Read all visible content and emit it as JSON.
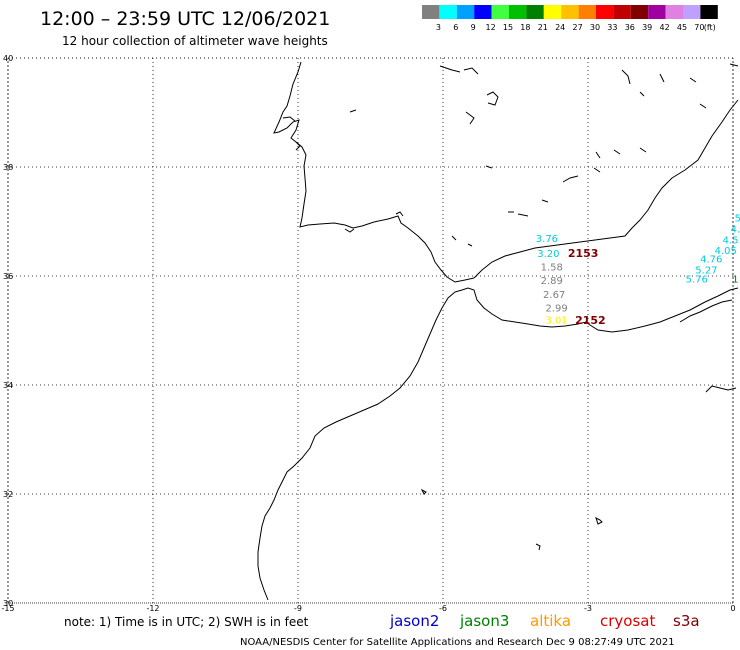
{
  "header": {
    "title": "12:00 – 23:59 UTC 12/06/2021",
    "subtitle": "12 hour collection of altimeter wave heights"
  },
  "legend": {
    "unit": "(ft)",
    "bins": [
      {
        "label": "3",
        "color": "#808080"
      },
      {
        "label": "6",
        "color": "#00ffff"
      },
      {
        "label": "9",
        "color": "#00a0ff"
      },
      {
        "label": "12",
        "color": "#0000ff"
      },
      {
        "label": "15",
        "color": "#40ff40"
      },
      {
        "label": "18",
        "color": "#00c000"
      },
      {
        "label": "21",
        "color": "#008000"
      },
      {
        "label": "24",
        "color": "#ffff00"
      },
      {
        "label": "27",
        "color": "#ffc000"
      },
      {
        "label": "30",
        "color": "#ff8000"
      },
      {
        "label": "33",
        "color": "#ff0000"
      },
      {
        "label": "36",
        "color": "#c00000"
      },
      {
        "label": "39",
        "color": "#800000"
      },
      {
        "label": "42",
        "color": "#a000a0"
      },
      {
        "label": "45",
        "color": "#e080e0"
      },
      {
        "label": "70",
        "color": "#c0a0ff"
      },
      {
        "label": "",
        "color": "#000000"
      }
    ]
  },
  "map": {
    "lon_range": [
      -15,
      0
    ],
    "lat_range": [
      30,
      40
    ],
    "lon_ticks": [
      "-15",
      "-12",
      "-9",
      "-6",
      "-3",
      "0"
    ],
    "lat_ticks": [
      "40",
      "38",
      "36",
      "34",
      "32",
      "30"
    ],
    "observations": [
      {
        "text": "3.76",
        "color": "#00ccdd",
        "lon": -3.85,
        "lat": 36.62
      },
      {
        "text": "3.20",
        "color": "#00ccdd",
        "lon": -3.82,
        "lat": 36.35
      },
      {
        "text": "1.58",
        "color": "#808080",
        "lon": -3.75,
        "lat": 36.1
      },
      {
        "text": "2.89",
        "color": "#808080",
        "lon": -3.75,
        "lat": 35.85
      },
      {
        "text": "2.67",
        "color": "#808080",
        "lon": -3.7,
        "lat": 35.6
      },
      {
        "text": "2.99",
        "color": "#808080",
        "lon": -3.65,
        "lat": 35.35
      },
      {
        "text": "3.01",
        "color": "#ffee00",
        "lon": -3.65,
        "lat": 35.13
      },
      {
        "text": "5",
        "color": "#00ccdd",
        "lon": 0.1,
        "lat": 37.0
      },
      {
        "text": "4.",
        "color": "#00ccdd",
        "lon": 0.05,
        "lat": 36.8
      },
      {
        "text": "4.5",
        "color": "#00ccdd",
        "lon": -0.05,
        "lat": 36.6
      },
      {
        "text": "4.05",
        "color": "#00ccdd",
        "lon": -0.15,
        "lat": 36.4
      },
      {
        "text": "4.76",
        "color": "#00ccdd",
        "lon": -0.45,
        "lat": 36.25
      },
      {
        "text": "5.27",
        "color": "#00ccdd",
        "lon": -0.55,
        "lat": 36.05
      },
      {
        "text": "5.76",
        "color": "#00ccdd",
        "lon": -0.75,
        "lat": 35.88
      },
      {
        "text": "1",
        "color": "#008000",
        "lon": 0.05,
        "lat": 35.88
      }
    ],
    "track_labels": [
      {
        "text": "2153",
        "lon": -3.1,
        "lat": 36.35
      },
      {
        "text": "2152",
        "lon": -2.95,
        "lat": 35.12
      }
    ]
  },
  "footer": {
    "note": "note:  1) Time is in UTC;  2) SWH is in feet",
    "satellites": [
      {
        "name": "jason2",
        "color": "#0000cc"
      },
      {
        "name": "jason3",
        "color": "#008000"
      },
      {
        "name": "altika",
        "color": "#ff9900"
      },
      {
        "name": "cryosat",
        "color": "#dd0000"
      },
      {
        "name": "s3a",
        "color": "#800000"
      }
    ],
    "credit": "NOAA/NESDIS Center for Satellite Applications and Research    Dec  9 08:27:49 UTC 2021"
  }
}
